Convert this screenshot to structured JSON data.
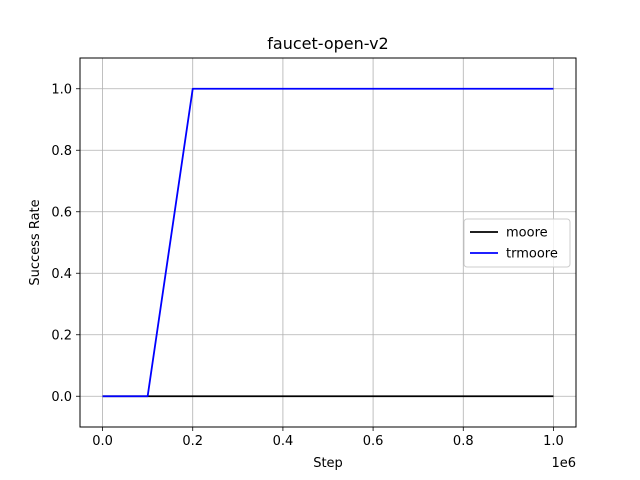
{
  "chart_data": {
    "type": "line",
    "title": "faucet-open-v2",
    "xlabel": "Step",
    "ylabel": "Success Rate",
    "x_offset_label": "1e6",
    "xlim": [
      -0.05,
      1.05
    ],
    "ylim": [
      -0.1,
      1.1
    ],
    "xticks": [
      0.0,
      0.2,
      0.4,
      0.6,
      0.8,
      1.0
    ],
    "xtick_labels": [
      "0.0",
      "0.2",
      "0.4",
      "0.6",
      "0.8",
      "1.0"
    ],
    "yticks": [
      0.0,
      0.2,
      0.4,
      0.6,
      0.8,
      1.0
    ],
    "ytick_labels": [
      "0.0",
      "0.2",
      "0.4",
      "0.6",
      "0.8",
      "1.0"
    ],
    "grid": true,
    "legend_position": "center-right",
    "series": [
      {
        "name": "moore",
        "color": "#000000",
        "x": [
          0.0,
          0.1,
          0.2,
          0.3,
          0.4,
          0.5,
          0.6,
          0.7,
          0.8,
          0.9,
          1.0
        ],
        "y": [
          0,
          0,
          0,
          0,
          0,
          0,
          0,
          0,
          0,
          0,
          0
        ]
      },
      {
        "name": "trmoore",
        "color": "#0000ff",
        "x": [
          0.0,
          0.1,
          0.2,
          0.3,
          0.4,
          0.5,
          0.6,
          0.7,
          0.8,
          0.9,
          1.0
        ],
        "y": [
          0,
          0,
          1,
          1,
          1,
          1,
          1,
          1,
          1,
          1,
          1
        ]
      }
    ]
  }
}
